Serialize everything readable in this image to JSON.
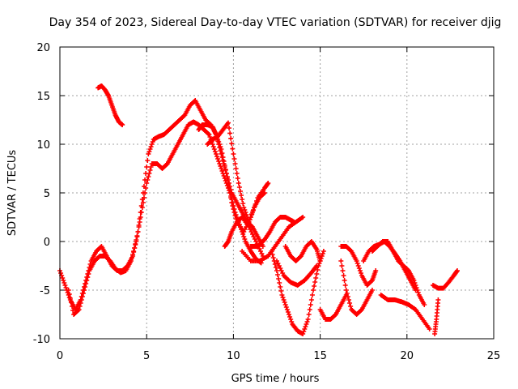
{
  "chart_data": {
    "type": "scatter",
    "title": "Day 354 of 2023, Sidereal Day-to-day VTEC variation (SDTVAR) for receiver djig",
    "xlabel": "GPS time / hours",
    "ylabel": "SDTVAR / TECUs",
    "xlim": [
      0,
      25
    ],
    "ylim": [
      -10,
      20
    ],
    "x_ticks": [
      0,
      5,
      10,
      15,
      20,
      25
    ],
    "y_ticks": [
      -10,
      -5,
      0,
      5,
      10,
      15,
      20
    ],
    "x_tick_labels": [
      "0",
      "5",
      "10",
      "15",
      "20",
      "25"
    ],
    "y_tick_labels": [
      "-10",
      "-5",
      "0",
      "5",
      "10",
      "15",
      "20"
    ],
    "grid": true,
    "marker": "+",
    "color": "#ff0000",
    "series": [
      {
        "name": "trace-a",
        "x": [
          0,
          0.3,
          0.6,
          0.9,
          1.2,
          1.5,
          1.8,
          2.1,
          2.4,
          2.7,
          3.0,
          3.3,
          3.6,
          3.9,
          4.2,
          4.5,
          4.8,
          5.1,
          5.4,
          5.7,
          6.0,
          6.3,
          6.6,
          6.9,
          7.2,
          7.5,
          7.8,
          8.1,
          8.4,
          8.7,
          9.0,
          9.3,
          9.6,
          9.9,
          10.2,
          10.5,
          10.8,
          11.1,
          11.4,
          11.7
        ],
        "y": [
          -3.0,
          -4.5,
          -6.0,
          -7.0,
          -6.0,
          -4.0,
          -2.0,
          -1.0,
          -0.5,
          -1.5,
          -2.5,
          -3.0,
          -3.0,
          -2.5,
          -1.5,
          1.0,
          5.0,
          9.0,
          10.5,
          10.8,
          11.0,
          11.5,
          12.0,
          12.5,
          13.0,
          14.0,
          14.5,
          13.5,
          12.5,
          12.0,
          11.0,
          9.0,
          7.0,
          5.0,
          4.0,
          3.0,
          2.0,
          1.5,
          0.5,
          -0.5
        ]
      },
      {
        "name": "trace-b",
        "x": [
          0.5,
          0.8,
          1.1,
          1.4,
          1.7,
          2.0,
          2.3,
          2.6,
          2.9,
          3.2,
          3.5,
          3.8,
          4.1,
          4.4,
          4.7,
          5.0,
          5.3,
          5.6,
          5.9,
          6.2,
          6.5,
          6.8,
          7.1,
          7.4,
          7.7,
          8.0,
          8.3,
          8.6,
          8.9,
          9.2,
          9.5,
          9.8,
          10.1,
          10.4,
          10.7,
          11.0,
          11.3,
          11.6
        ],
        "y": [
          -5.0,
          -7.5,
          -7.0,
          -5.0,
          -3.0,
          -2.0,
          -1.5,
          -1.5,
          -2.0,
          -2.8,
          -3.2,
          -3.0,
          -2.0,
          0.0,
          3.0,
          6.0,
          8.0,
          8.0,
          7.5,
          8.0,
          9.0,
          10.0,
          11.0,
          12.0,
          12.3,
          12.0,
          11.5,
          11.0,
          9.5,
          8.0,
          6.5,
          5.0,
          3.0,
          1.5,
          0.0,
          -1.0,
          -1.8,
          -2.2
        ]
      },
      {
        "name": "trace-c",
        "x": [
          2.2,
          2.4,
          2.6,
          2.8,
          3.0,
          3.2,
          3.4,
          3.6
        ],
        "y": [
          15.8,
          16.0,
          15.6,
          15.0,
          14.0,
          13.0,
          12.3,
          12.0
        ]
      },
      {
        "name": "trace-d",
        "x": [
          8.0,
          8.2,
          8.5,
          8.8,
          9.0,
          9.3,
          9.6,
          9.9,
          10.2,
          10.6,
          11.0,
          11.4,
          11.8,
          12.0
        ],
        "y": [
          11.5,
          12.0,
          12.0,
          11.8,
          11.0,
          9.5,
          7.0,
          4.0,
          2.0,
          1.0,
          2.5,
          4.5,
          5.5,
          6.0
        ]
      },
      {
        "name": "trace-e",
        "x": [
          8.5,
          8.8,
          9.1,
          9.4,
          9.7,
          10.0,
          10.3,
          10.6,
          10.9,
          11.2,
          11.5,
          11.8
        ],
        "y": [
          10.0,
          10.5,
          10.8,
          11.5,
          12.2,
          9.0,
          6.0,
          3.5,
          2.0,
          3.5,
          4.5,
          5.0
        ]
      },
      {
        "name": "trace-f",
        "x": [
          9.5,
          9.7,
          9.9,
          10.2,
          10.5,
          10.9,
          11.3,
          11.7
        ],
        "y": [
          -0.5,
          0.0,
          1.0,
          2.0,
          2.5,
          1.5,
          0.0,
          -1.5
        ]
      },
      {
        "name": "trace-g",
        "x": [
          10.5,
          11.0,
          11.5,
          12.0,
          12.4,
          12.8,
          13.2,
          13.6,
          14.0
        ],
        "y": [
          -1.0,
          -2.0,
          -2.0,
          -1.5,
          -0.5,
          0.5,
          1.5,
          2.0,
          2.5
        ]
      },
      {
        "name": "trace-h",
        "x": [
          11.0,
          11.4,
          11.8,
          12.1,
          12.4,
          12.7,
          13.0,
          13.3,
          13.5
        ],
        "y": [
          -0.5,
          -0.5,
          0.2,
          1.0,
          2.0,
          2.5,
          2.5,
          2.2,
          2.0
        ]
      },
      {
        "name": "trace-i",
        "x": [
          12.2,
          12.5,
          12.8,
          13.1,
          13.4,
          13.7,
          14.0,
          14.3,
          14.6,
          14.9,
          15.2
        ],
        "y": [
          -1.0,
          -3.0,
          -5.5,
          -7.0,
          -8.5,
          -9.2,
          -9.5,
          -8.0,
          -5.0,
          -2.5,
          -1.0
        ]
      },
      {
        "name": "trace-j",
        "x": [
          13.0,
          13.3,
          13.6,
          13.9,
          14.2,
          14.5,
          14.8,
          15.0
        ],
        "y": [
          -0.5,
          -1.5,
          -2.0,
          -1.5,
          -0.5,
          0.0,
          -0.8,
          -2.0
        ]
      },
      {
        "name": "trace-k",
        "x": [
          12.5,
          12.9,
          13.3,
          13.7,
          14.1,
          14.5,
          14.8
        ],
        "y": [
          -2.0,
          -3.5,
          -4.2,
          -4.5,
          -4.0,
          -3.2,
          -2.5
        ]
      },
      {
        "name": "trace-l",
        "x": [
          15.0,
          15.3,
          15.6,
          15.9,
          16.2,
          16.5
        ],
        "y": [
          -7.0,
          -8.0,
          -8.0,
          -7.5,
          -6.5,
          -5.5
        ]
      },
      {
        "name": "trace-m",
        "x": [
          16.2,
          16.5,
          16.8,
          17.1,
          17.4,
          17.7,
          18.0
        ],
        "y": [
          -2.0,
          -5.0,
          -7.0,
          -7.5,
          -7.0,
          -6.0,
          -5.0
        ]
      },
      {
        "name": "trace-n",
        "x": [
          16.2,
          16.5,
          16.8,
          17.1,
          17.4,
          17.7,
          18.0,
          18.2
        ],
        "y": [
          -0.5,
          -0.5,
          -1.0,
          -2.0,
          -3.5,
          -4.5,
          -4.0,
          -3.0
        ]
      },
      {
        "name": "trace-o",
        "x": [
          17.5,
          17.8,
          18.1,
          18.4,
          18.7,
          19.0,
          19.3,
          19.6,
          19.9,
          20.2,
          20.5
        ],
        "y": [
          -2.0,
          -1.0,
          -0.5,
          -0.3,
          0.0,
          -0.5,
          -1.2,
          -2.0,
          -3.0,
          -4.0,
          -5.0
        ]
      },
      {
        "name": "trace-p",
        "x": [
          18.0,
          18.3,
          18.6,
          18.9,
          19.2,
          19.5,
          19.8,
          20.1,
          20.4,
          20.7,
          21.0
        ],
        "y": [
          -1.0,
          -0.5,
          0.0,
          0.0,
          -1.0,
          -2.0,
          -2.5,
          -3.0,
          -4.0,
          -5.5,
          -6.5
        ]
      },
      {
        "name": "trace-q",
        "x": [
          18.5,
          18.9,
          19.3,
          19.7,
          20.1,
          20.5,
          20.9,
          21.3
        ],
        "y": [
          -5.5,
          -6.0,
          -6.0,
          -6.2,
          -6.5,
          -7.0,
          -8.0,
          -9.0
        ]
      },
      {
        "name": "trace-r",
        "x": [
          21.5,
          21.8,
          22.1,
          22.4,
          22.7,
          22.9
        ],
        "y": [
          -4.5,
          -4.8,
          -4.8,
          -4.2,
          -3.5,
          -3.0
        ]
      },
      {
        "name": "trace-s",
        "x": [
          21.6,
          21.7,
          21.8
        ],
        "y": [
          -9.5,
          -8.0,
          -6.0
        ]
      }
    ]
  }
}
